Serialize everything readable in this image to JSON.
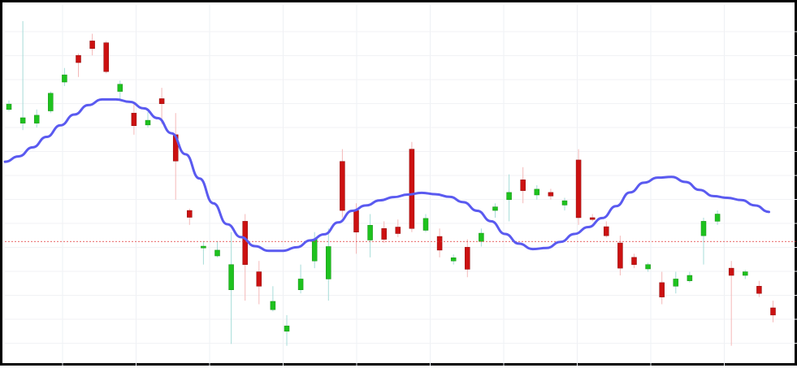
{
  "chart_data": {
    "type": "candlestick",
    "title": "",
    "xlabel": "",
    "ylabel": "",
    "ylim": [
      0,
      100
    ],
    "grid": true,
    "legend": "none",
    "reference_line": {
      "value": 34.4,
      "color": "#e03030",
      "style": "dotted"
    },
    "moving_average": {
      "color": "#5a5af0",
      "values": [
        56.5,
        58.0,
        60.5,
        63.4,
        66.6,
        69.6,
        72.2,
        73.8,
        73.8,
        73.1,
        71.3,
        68.6,
        64.4,
        58.6,
        51.9,
        45.0,
        39.2,
        35.6,
        33.1,
        31.8,
        31.8,
        32.8,
        34.7,
        36.4,
        39.7,
        42.9,
        44.4,
        45.8,
        46.7,
        47.4,
        47.9,
        47.5,
        46.8,
        45.3,
        42.9,
        40.0,
        36.5,
        33.8,
        32.3,
        32.6,
        34.3,
        36.5,
        38.4,
        40.9,
        44.2,
        48.0,
        50.7,
        52.1,
        52.3,
        50.9,
        48.7,
        47.0,
        46.5,
        45.9,
        44.4,
        42.6
      ]
    },
    "candles": [
      [
        71.0,
        72.5,
        73.5,
        70.5
      ],
      [
        67.2,
        68.7,
        95.5,
        65.3
      ],
      [
        67.2,
        69.4,
        71.0,
        66.0
      ],
      [
        70.6,
        75.5,
        76.0,
        70.0
      ],
      [
        78.6,
        80.6,
        82.5,
        77.5
      ],
      [
        86.0,
        84.0,
        86.5,
        80.0
      ],
      [
        90.0,
        87.9,
        92.0,
        86.0
      ],
      [
        89.5,
        81.5,
        90.0,
        81.0
      ],
      [
        76.0,
        78.0,
        79.0,
        74.0
      ],
      [
        70.0,
        66.5,
        73.0,
        64.0
      ],
      [
        66.7,
        68.0,
        70.3,
        66.0
      ],
      [
        74.0,
        72.6,
        77.0,
        67.0
      ],
      [
        64.0,
        56.7,
        70.0,
        46.0
      ],
      [
        43.0,
        41.1,
        43.5,
        39.0
      ],
      [
        32.6,
        33.1,
        34.5,
        28.0
      ],
      [
        30.4,
        32.0,
        34.5,
        30.0
      ],
      [
        21.0,
        28.0,
        37.0,
        6.0
      ],
      [
        40.0,
        28.0,
        42.0,
        18.0
      ],
      [
        26.0,
        22.0,
        29.0,
        17.0
      ],
      [
        15.5,
        17.8,
        22.0,
        15.0
      ],
      [
        9.5,
        11.0,
        14.0,
        5.5
      ],
      [
        21.0,
        24.0,
        28.0,
        20.0
      ],
      [
        29.0,
        35.0,
        37.0,
        27.0
      ],
      [
        24.0,
        33.0,
        38.0,
        18.0
      ],
      [
        56.6,
        43.0,
        60.0,
        41.0
      ],
      [
        43.0,
        37.0,
        45.0,
        31.0
      ],
      [
        34.8,
        38.9,
        42.0,
        30.0
      ],
      [
        38.0,
        35.0,
        40.0,
        34.0
      ],
      [
        38.4,
        36.6,
        40.5,
        35.6
      ],
      [
        60.0,
        38.0,
        62.0,
        37.0
      ],
      [
        37.5,
        40.8,
        42.0,
        37.0
      ],
      [
        35.8,
        32.0,
        38.0,
        30.0
      ],
      [
        29.0,
        29.9,
        30.8,
        28.0
      ],
      [
        32.8,
        26.7,
        35.0,
        24.5
      ],
      [
        34.4,
        36.7,
        38.0,
        33.0
      ],
      [
        43.0,
        44.0,
        45.0,
        41.0
      ],
      [
        46.0,
        48.0,
        53.0,
        40.0
      ],
      [
        51.5,
        48.5,
        55.0,
        45.0
      ],
      [
        47.3,
        48.9,
        50.0,
        46.0
      ],
      [
        48.0,
        47.0,
        49.0,
        46.0
      ],
      [
        44.5,
        45.7,
        46.5,
        43.0
      ],
      [
        57.0,
        41.0,
        60.0,
        39.0
      ],
      [
        41.0,
        40.5,
        42.0,
        40.0
      ],
      [
        38.5,
        36.0,
        40.0,
        35.5
      ],
      [
        34.0,
        27.0,
        36.0,
        25.0
      ],
      [
        30.0,
        28.0,
        31.0,
        27.0
      ],
      [
        26.8,
        28.0,
        28.5,
        26.0
      ],
      [
        23.0,
        19.0,
        26.0,
        17.0
      ],
      [
        22.0,
        24.0,
        26.0,
        20.0
      ],
      [
        23.5,
        25.0,
        26.0,
        23.0
      ],
      [
        36.0,
        40.0,
        41.0,
        28.0
      ],
      [
        40.0,
        42.0,
        43.0,
        39.0
      ],
      [
        27.0,
        25.0,
        29.0,
        5.5
      ],
      [
        25.0,
        26.0,
        26.5,
        24.0
      ],
      [
        22.0,
        20.0,
        23.5,
        19.0
      ],
      [
        16.0,
        14.0,
        18.0,
        12.0
      ]
    ]
  }
}
